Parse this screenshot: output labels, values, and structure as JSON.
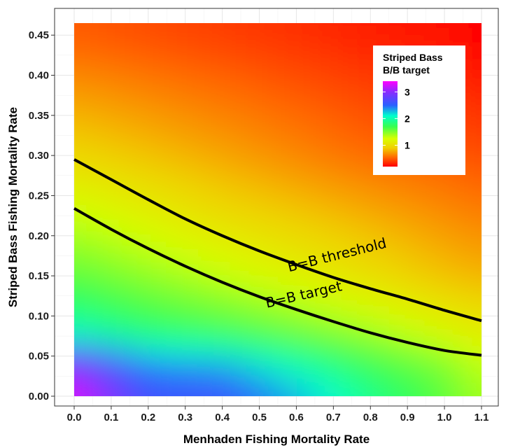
{
  "chart_data": {
    "type": "heatmap",
    "title": "",
    "xlabel": "Menhaden Fishing Mortality Rate",
    "ylabel": "Striped Bass Fishing Mortality Rate",
    "xlim": [
      0,
      1.1
    ],
    "ylim": [
      0,
      0.465
    ],
    "x_ticks": [
      "0.0",
      "0.1",
      "0.2",
      "0.3",
      "0.4",
      "0.5",
      "0.6",
      "0.7",
      "0.8",
      "0.9",
      "1.0",
      "1.1"
    ],
    "y_ticks": [
      "0.00",
      "0.05",
      "0.10",
      "0.15",
      "0.20",
      "0.25",
      "0.30",
      "0.35",
      "0.40",
      "0.45"
    ],
    "grid": true,
    "colorscale": {
      "title_lines": [
        "Striped Bass",
        "B/B target"
      ],
      "ticks": [
        "1",
        "2",
        "3"
      ],
      "range": [
        0.2,
        3.4
      ],
      "stops": [
        {
          "value": 0.2,
          "color": "#ff0000"
        },
        {
          "value": 0.55,
          "color": "#ff6a00"
        },
        {
          "value": 0.9,
          "color": "#f0d000"
        },
        {
          "value": 1.25,
          "color": "#d8ff00"
        },
        {
          "value": 1.7,
          "color": "#38ff50"
        },
        {
          "value": 2.1,
          "color": "#00ffcc"
        },
        {
          "value": 2.5,
          "color": "#2a60ff"
        },
        {
          "value": 3.0,
          "color": "#8a2bff"
        },
        {
          "value": 3.4,
          "color": "#ff00ff"
        }
      ],
      "legend_position": "top-right"
    },
    "surface_samples": {
      "x": [
        0,
        0.2,
        0.4,
        0.6,
        0.8,
        1.0,
        1.1
      ],
      "y": [
        0,
        0.04,
        0.08,
        0.15,
        0.235,
        0.3,
        0.45
      ],
      "z": [
        [
          3.3,
          2.6,
          2.6,
          2.3,
          1.9,
          1.6,
          1.4
        ],
        [
          2.9,
          2.4,
          2.3,
          2.0,
          1.7,
          1.5,
          1.3
        ],
        [
          2.0,
          1.8,
          1.7,
          1.55,
          1.4,
          1.2,
          1.1
        ],
        [
          1.6,
          1.45,
          1.3,
          1.15,
          1.0,
          0.85,
          0.8
        ],
        [
          1.25,
          1.1,
          0.95,
          0.85,
          0.75,
          0.65,
          0.6
        ],
        [
          0.95,
          0.85,
          0.75,
          0.65,
          0.55,
          0.5,
          0.45
        ],
        [
          0.5,
          0.45,
          0.4,
          0.35,
          0.3,
          0.25,
          0.2
        ]
      ]
    },
    "series": [
      {
        "name": "B=B threshold",
        "x": [
          0,
          0.1,
          0.2,
          0.3,
          0.4,
          0.5,
          0.6,
          0.7,
          0.8,
          0.9,
          1.0,
          1.1
        ],
        "y": [
          0.295,
          0.27,
          0.245,
          0.221,
          0.2,
          0.181,
          0.164,
          0.148,
          0.134,
          0.121,
          0.107,
          0.094
        ]
      },
      {
        "name": "B=B target",
        "x": [
          0,
          0.1,
          0.2,
          0.3,
          0.4,
          0.5,
          0.6,
          0.7,
          0.8,
          0.9,
          1.0,
          1.1
        ],
        "y": [
          0.234,
          0.208,
          0.184,
          0.162,
          0.142,
          0.124,
          0.108,
          0.093,
          0.079,
          0.067,
          0.057,
          0.051
        ]
      }
    ],
    "annotations": [
      {
        "text": "B=B threshold",
        "x": 0.58,
        "y": 0.155,
        "angle": -14
      },
      {
        "text": "B=B target",
        "x": 0.52,
        "y": 0.11,
        "angle": -13
      }
    ]
  }
}
